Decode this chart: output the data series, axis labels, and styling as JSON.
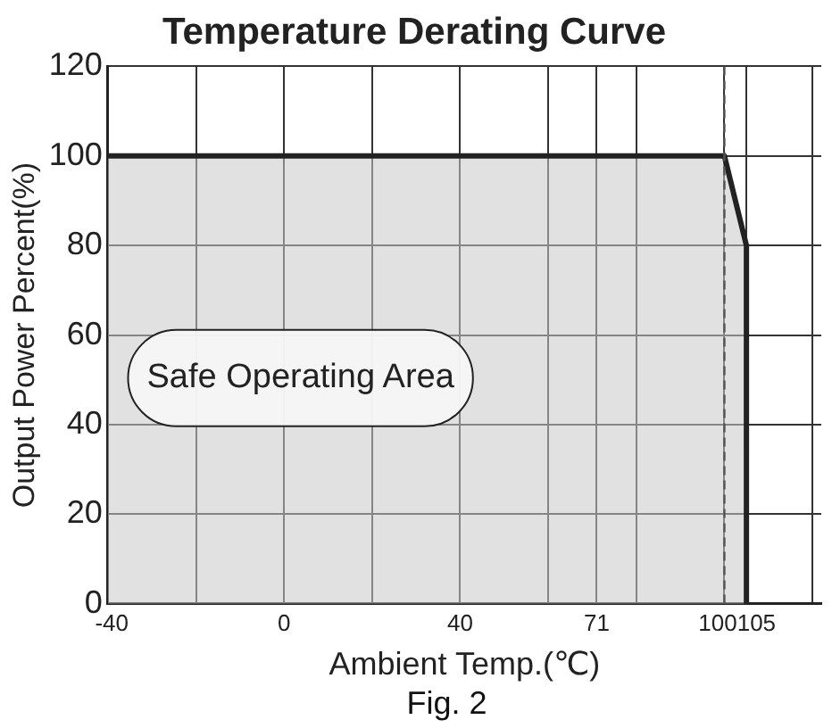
{
  "chart_data": {
    "type": "area",
    "title": "Temperature Derating Curve",
    "xlabel": "Ambient Temp.(℃)",
    "ylabel": "Output Power Percent(%)",
    "series": [
      {
        "x": [
          -40,
          100,
          105,
          105
        ],
        "values": [
          100,
          100,
          80,
          0
        ],
        "color": "#222222"
      }
    ],
    "xlim": [
      -40,
      122
    ],
    "xticks": [
      -40,
      {
        "value": -20,
        "label": null
      },
      0,
      {
        "value": 20,
        "label": null
      },
      40,
      {
        "value": 60,
        "label": null
      },
      71,
      {
        "value": 80,
        "label": null
      },
      100,
      105,
      {
        "value": 120,
        "label": null
      }
    ],
    "ylim": [
      0,
      120
    ],
    "yticks": [
      0,
      20,
      40,
      60,
      80,
      100,
      120
    ],
    "grid": true,
    "legend": false,
    "ref_lines": [
      {
        "axis": "x",
        "value": 100,
        "label": null,
        "line_style": "dashed",
        "color": "#555555"
      }
    ],
    "annotations": [
      "Safe Operating Area",
      "Fig. 2"
    ]
  }
}
